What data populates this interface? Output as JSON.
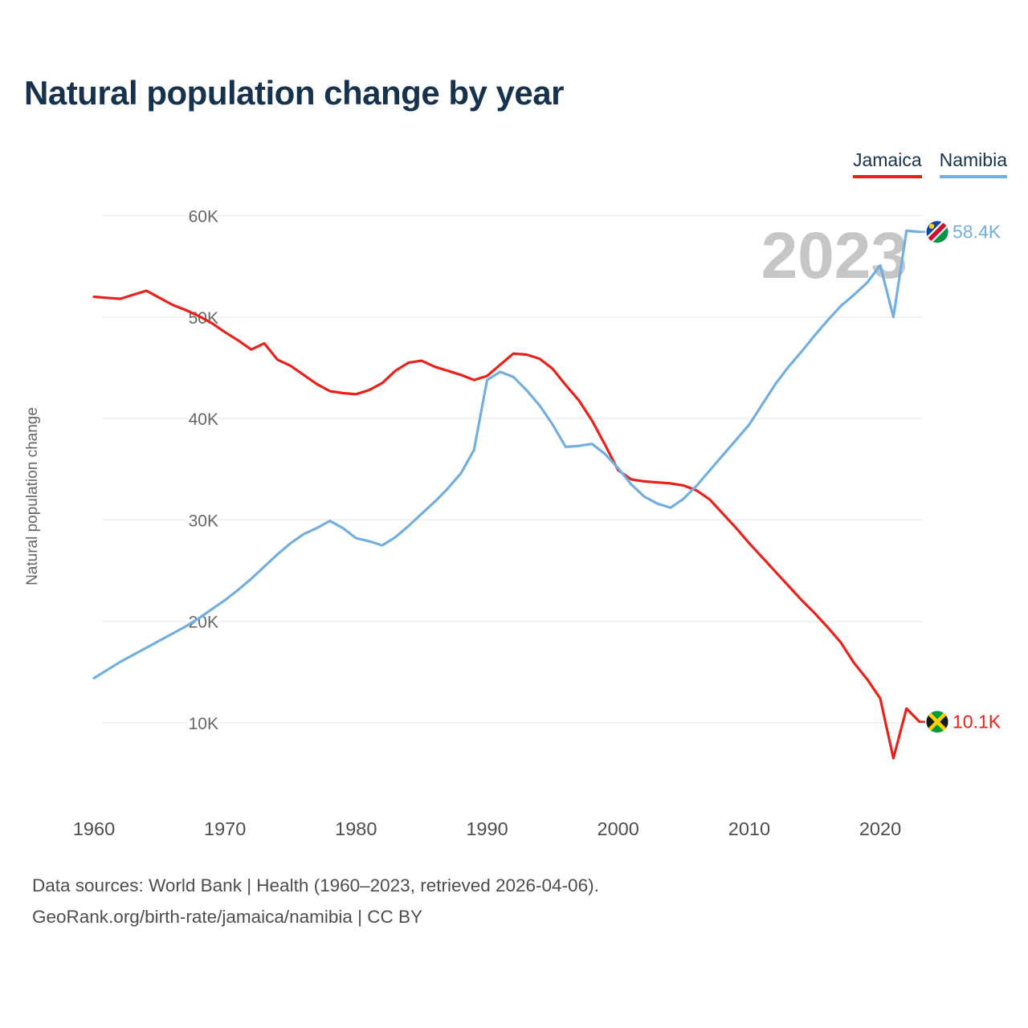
{
  "title": "Natural population change by year",
  "watermark": "2023",
  "legend": [
    {
      "label": "Jamaica",
      "color": "#e8211b"
    },
    {
      "label": "Namibia",
      "color": "#72aede"
    }
  ],
  "chart_data": {
    "type": "line",
    "title": "Natural population change by year",
    "xlabel": "",
    "ylabel": "Natural population change",
    "xlim": [
      1960,
      2023
    ],
    "ylim": [
      10,
      60
    ],
    "grid": "horizontal",
    "legend_position": "top-right",
    "yticks": [
      {
        "value": 10,
        "label": "10K"
      },
      {
        "value": 20,
        "label": "20K"
      },
      {
        "value": 30,
        "label": "30K"
      },
      {
        "value": 40,
        "label": "40K"
      },
      {
        "value": 50,
        "label": "50K"
      },
      {
        "value": 60,
        "label": "60K"
      }
    ],
    "xticks": [
      1960,
      1970,
      1980,
      1990,
      2000,
      2010,
      2020
    ],
    "x": [
      1960,
      1961,
      1962,
      1963,
      1964,
      1965,
      1966,
      1967,
      1968,
      1969,
      1970,
      1971,
      1972,
      1973,
      1974,
      1975,
      1976,
      1977,
      1978,
      1979,
      1980,
      1981,
      1982,
      1983,
      1984,
      1985,
      1986,
      1987,
      1988,
      1989,
      1990,
      1991,
      1992,
      1993,
      1994,
      1995,
      1996,
      1997,
      1998,
      1999,
      2000,
      2001,
      2002,
      2003,
      2004,
      2005,
      2006,
      2007,
      2008,
      2009,
      2010,
      2011,
      2012,
      2013,
      2014,
      2015,
      2016,
      2017,
      2018,
      2019,
      2020,
      2021,
      2022,
      2023
    ],
    "unit": "K",
    "series": [
      {
        "name": "Jamaica",
        "color": "#e8211b",
        "end_label": "10.1K",
        "values": [
          52.0,
          51.9,
          51.8,
          52.2,
          52.6,
          51.9,
          51.2,
          50.7,
          50.1,
          49.4,
          48.5,
          47.7,
          46.8,
          47.4,
          45.8,
          45.2,
          44.3,
          43.4,
          42.7,
          42.5,
          42.4,
          42.8,
          43.5,
          44.7,
          45.5,
          45.7,
          45.1,
          44.7,
          44.3,
          43.8,
          44.2,
          45.3,
          46.4,
          46.3,
          45.9,
          44.9,
          43.3,
          41.8,
          39.8,
          37.4,
          34.9,
          34.0,
          33.8,
          33.7,
          33.6,
          33.4,
          32.9,
          32.0,
          30.6,
          29.2,
          27.7,
          26.3,
          24.9,
          23.5,
          22.1,
          20.8,
          19.4,
          17.9,
          15.9,
          14.3,
          12.4,
          6.5,
          11.4,
          10.1
        ]
      },
      {
        "name": "Namibia",
        "color": "#72aede",
        "end_label": "58.4K",
        "values": [
          14.4,
          15.2,
          16.0,
          16.7,
          17.4,
          18.1,
          18.8,
          19.5,
          20.3,
          21.2,
          22.1,
          23.1,
          24.2,
          25.4,
          26.6,
          27.7,
          28.6,
          29.2,
          29.9,
          29.2,
          28.2,
          27.9,
          27.5,
          28.3,
          29.4,
          30.6,
          31.8,
          33.1,
          34.6,
          36.9,
          43.8,
          44.6,
          44.1,
          42.8,
          41.3,
          39.4,
          37.2,
          37.3,
          37.5,
          36.5,
          35.1,
          33.5,
          32.3,
          31.6,
          31.2,
          32.1,
          33.4,
          34.9,
          36.4,
          37.9,
          39.4,
          41.4,
          43.4,
          45.1,
          46.6,
          48.2,
          49.7,
          51.1,
          52.2,
          53.4,
          55.1,
          50.0,
          58.5,
          58.4
        ]
      }
    ]
  },
  "footer": {
    "line1": "Data sources: World Bank | Health (1960–2023, retrieved 2026-04-06).",
    "line2": "GeoRank.org/birth-rate/jamaica/namibia | CC BY"
  }
}
